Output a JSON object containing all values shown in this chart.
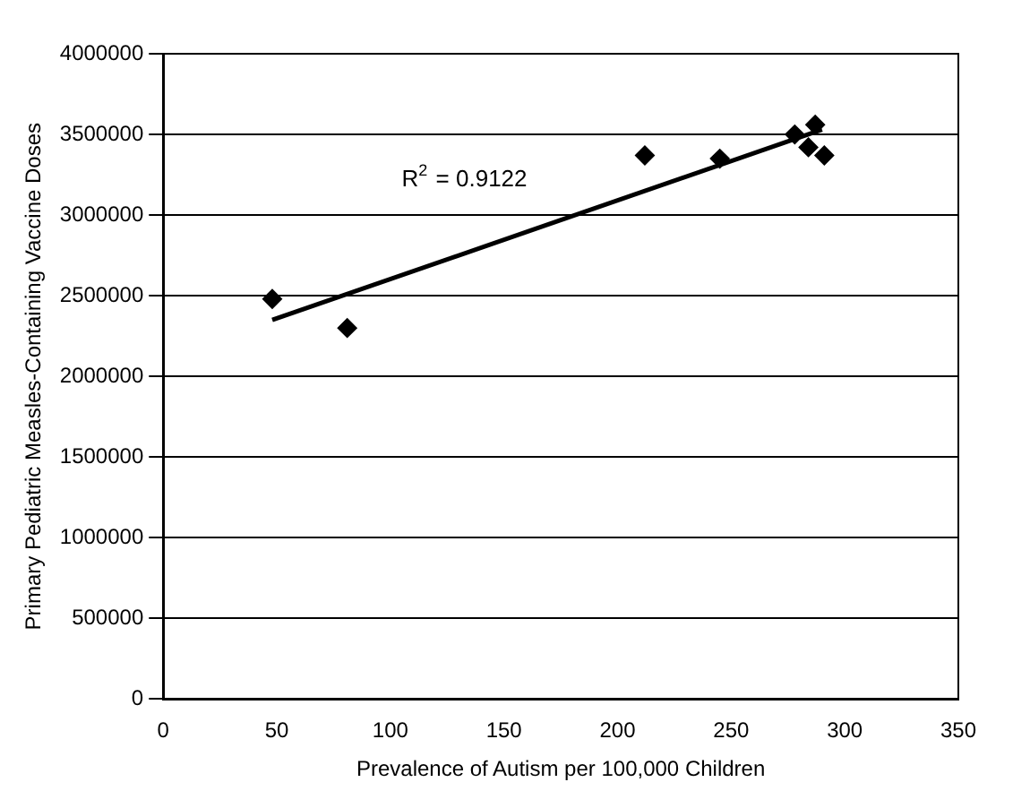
{
  "chart_data": {
    "type": "scatter",
    "xlabel": "Prevalence of Autism per 100,000 Children",
    "ylabel": "Primary Pediatric Measles-Containing Vaccine Doses",
    "series": [
      {
        "color": "#000000",
        "marker": "diamond",
        "x": [
          48,
          81,
          212,
          245,
          278,
          284,
          287,
          291
        ],
        "values": [
          2480000,
          2300000,
          3370000,
          3350000,
          3500000,
          3420000,
          3560000,
          3370000
        ]
      },
      {
        "type": "line",
        "color": "#000000",
        "marker": "none",
        "x": [
          48,
          290
        ],
        "values": [
          2350000,
          3530000
        ]
      }
    ],
    "xlim": [
      0,
      350
    ],
    "xticks": [
      0,
      50,
      100,
      150,
      200,
      250,
      300,
      350
    ],
    "ylim": [
      0,
      4000000
    ],
    "yticks": [
      0,
      500000,
      1000000,
      1500000,
      2000000,
      2500000,
      3000000,
      3500000,
      4000000
    ],
    "grid": "y",
    "legend": false,
    "annotations": [
      "R$^{2}$ = 0.9122"
    ]
  }
}
